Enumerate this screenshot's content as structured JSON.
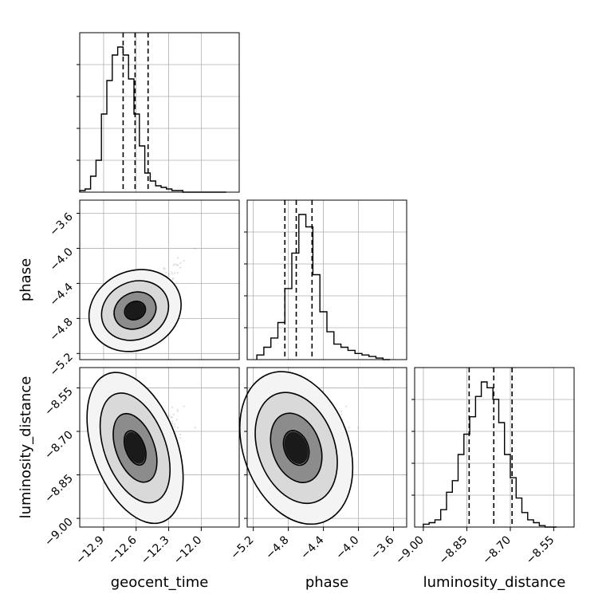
{
  "chart_data": {
    "type": "corner",
    "parameters": [
      "geocent_time",
      "phase",
      "luminosity_distance"
    ],
    "axis_labels": {
      "x": [
        "geocent_time",
        "phase",
        "luminosity_distance"
      ],
      "y": [
        "",
        "phase",
        "luminosity_distance"
      ]
    },
    "ranges": {
      "geocent_time": [
        -13.12,
        -11.65
      ],
      "phase": [
        -5.27,
        -3.45
      ],
      "luminosity_distance": [
        -9.03,
        -8.48
      ]
    },
    "ticks": {
      "geocent_time": [
        "−12.9",
        "−12.6",
        "−12.3",
        "−12.0"
      ],
      "phase": [
        "−5.2",
        "−4.8",
        "−4.4",
        "−4.0",
        "−3.6"
      ],
      "luminosity_distance": [
        "−9.00",
        "−8.85",
        "−8.70",
        "−8.55"
      ]
    },
    "tick_values": {
      "geocent_time": [
        -12.9,
        -12.6,
        -12.3,
        -12.0
      ],
      "phase": [
        -5.2,
        -4.8,
        -4.4,
        -4.0,
        -3.6
      ],
      "luminosity_distance": [
        -9.0,
        -8.85,
        -8.7,
        -8.55
      ]
    },
    "quantiles": {
      "geocent_time": [
        -12.72,
        -12.61,
        -12.49
      ],
      "phase": [
        -4.84,
        -4.71,
        -4.53
      ],
      "luminosity_distance": [
        -8.842,
        -8.757,
        -8.694
      ]
    },
    "histograms": {
      "geocent_time": {
        "edges": [
          -13.12,
          -13.07,
          -13.02,
          -12.97,
          -12.92,
          -12.87,
          -12.82,
          -12.77,
          -12.72,
          -12.67,
          -12.62,
          -12.57,
          -12.52,
          -12.47,
          -12.42,
          -12.37,
          -12.32,
          -12.27,
          -12.22,
          -12.17,
          -12.12,
          -12.07,
          -12.02,
          -11.97,
          -11.92,
          -11.87,
          -11.82,
          -11.77
        ],
        "counts": [
          1,
          2,
          10,
          20,
          49,
          70,
          86,
          91,
          86,
          71,
          49,
          29,
          12,
          7,
          4,
          3,
          2,
          1,
          1,
          0,
          0,
          0,
          0,
          0,
          0,
          0,
          0
        ]
      },
      "phase": {
        "edges": [
          -5.16,
          -5.08,
          -5.0,
          -4.92,
          -4.84,
          -4.76,
          -4.68,
          -4.6,
          -4.52,
          -4.44,
          -4.36,
          -4.28,
          -4.2,
          -4.12,
          -4.04,
          -3.96,
          -3.88,
          -3.8,
          -3.72,
          -3.64
        ],
        "counts": [
          3,
          8,
          14,
          24,
          46,
          69,
          94,
          86,
          55,
          31,
          18,
          10,
          8,
          6,
          4,
          3,
          2,
          1,
          0
        ]
      },
      "luminosity_distance": {
        "edges": [
          -9.0,
          -8.98,
          -8.96,
          -8.94,
          -8.92,
          -8.9,
          -8.88,
          -8.86,
          -8.84,
          -8.82,
          -8.8,
          -8.78,
          -8.76,
          -8.74,
          -8.72,
          -8.7,
          -8.68,
          -8.66,
          -8.64,
          -8.62,
          -8.6,
          -8.58,
          -8.56,
          -8.54
        ],
        "counts": [
          2,
          3,
          5,
          12,
          24,
          32,
          50,
          64,
          76,
          90,
          100,
          96,
          88,
          72,
          50,
          34,
          20,
          10,
          5,
          3,
          1,
          0,
          0
        ]
      }
    },
    "contour_levels": [
      "0.5σ",
      "1σ",
      "1.5σ",
      "2σ"
    ],
    "grid": true,
    "colors": {
      "line": "#000000",
      "grid": "#b0b0b0",
      "points": "#808080"
    }
  }
}
